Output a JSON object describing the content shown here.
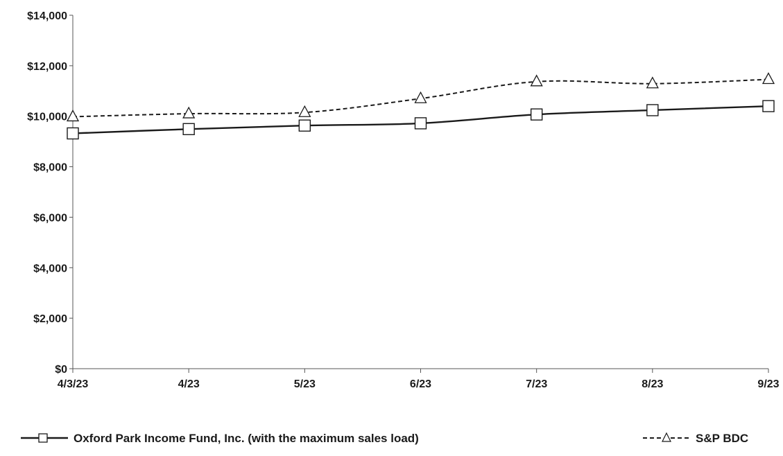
{
  "chart_data": {
    "type": "line",
    "title": "",
    "xlabel": "",
    "ylabel": "",
    "categories": [
      "4/3/23",
      "4/23",
      "5/23",
      "6/23",
      "7/23",
      "8/23",
      "9/23"
    ],
    "ylim": [
      0,
      14000
    ],
    "yticks": [
      "$0",
      "$2,000",
      "$4,000",
      "$6,000",
      "$8,000",
      "$10,000",
      "$12,000",
      "$14,000"
    ],
    "grid": false,
    "legend_position": "bottom",
    "series": [
      {
        "name": "Oxford Park Income Fund, Inc. (with the maximum sales load)",
        "values": [
          9320,
          9490,
          9630,
          9720,
          10070,
          10240,
          10400
        ],
        "line_style": "solid",
        "marker": "square",
        "color": "#1a1a1a"
      },
      {
        "name": "S&P BDC",
        "values": [
          9980,
          10100,
          10150,
          10700,
          11370,
          11290,
          11460
        ],
        "line_style": "dashed",
        "marker": "triangle",
        "color": "#1a1a1a"
      }
    ]
  }
}
